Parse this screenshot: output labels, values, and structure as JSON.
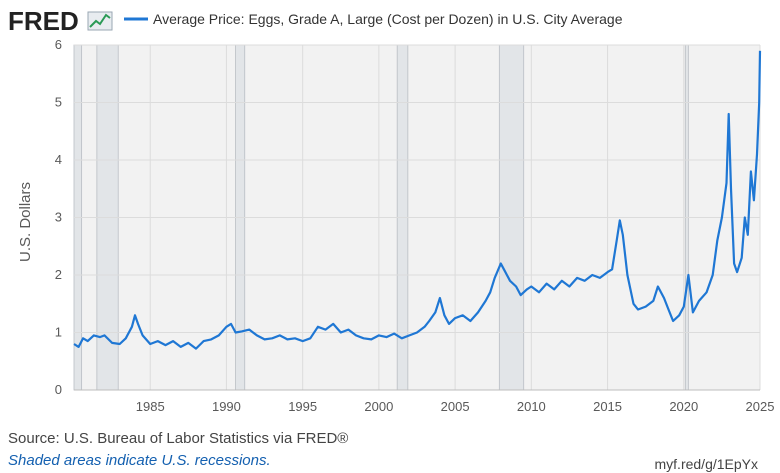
{
  "header": {
    "logo_text": "FRED",
    "series_title": "Average Price: Eggs, Grade A, Large (Cost per Dozen) in U.S. City Average"
  },
  "footer": {
    "source": "Source: U.S. Bureau of Labor Statistics via FRED®",
    "shade_note": "Shaded areas indicate U.S. recessions.",
    "shortlink": "myf.red/g/1EpYx"
  },
  "colors": {
    "line": "#1f77d4",
    "plot_bg": "#f2f2f2",
    "recession": "#e2e5e8",
    "grid": "#ffffff"
  },
  "chart_data": {
    "type": "line",
    "title": "Average Price: Eggs, Grade A, Large (Cost per Dozen) in U.S. City Average",
    "ylabel": "U.S. Dollars",
    "xlabel": "",
    "xlim": [
      1980.0,
      2025.0
    ],
    "ylim": [
      0,
      6
    ],
    "xticks": [
      1985,
      1990,
      1995,
      2000,
      2005,
      2010,
      2015,
      2020,
      2025
    ],
    "yticks": [
      0,
      1,
      2,
      3,
      4,
      5,
      6
    ],
    "grid": true,
    "legend": "top-left",
    "recessions": [
      [
        1980.0,
        1980.5
      ],
      [
        1981.5,
        1982.9
      ],
      [
        1990.6,
        1991.2
      ],
      [
        2001.2,
        2001.9
      ],
      [
        2007.9,
        2009.5
      ],
      [
        2020.1,
        2020.3
      ]
    ],
    "series": [
      {
        "name": "Average Price: Eggs, Grade A, Large (Cost per Dozen) in U.S. City Average",
        "x": [
          1980.0,
          1980.3,
          1980.6,
          1980.9,
          1981.3,
          1981.7,
          1982.0,
          1982.5,
          1983.0,
          1983.4,
          1983.8,
          1984.0,
          1984.2,
          1984.5,
          1985.0,
          1985.5,
          1986.0,
          1986.5,
          1987.0,
          1987.5,
          1988.0,
          1988.5,
          1989.0,
          1989.5,
          1990.0,
          1990.3,
          1990.6,
          1991.0,
          1991.5,
          1992.0,
          1992.5,
          1993.0,
          1993.5,
          1994.0,
          1994.5,
          1995.0,
          1995.5,
          1996.0,
          1996.5,
          1997.0,
          1997.5,
          1998.0,
          1998.5,
          1999.0,
          1999.5,
          2000.0,
          2000.5,
          2001.0,
          2001.5,
          2002.0,
          2002.5,
          2003.0,
          2003.3,
          2003.7,
          2004.0,
          2004.3,
          2004.6,
          2005.0,
          2005.5,
          2006.0,
          2006.5,
          2007.0,
          2007.3,
          2007.6,
          2008.0,
          2008.2,
          2008.6,
          2009.0,
          2009.3,
          2009.7,
          2010.0,
          2010.5,
          2011.0,
          2011.5,
          2012.0,
          2012.5,
          2013.0,
          2013.5,
          2014.0,
          2014.5,
          2015.0,
          2015.3,
          2015.6,
          2015.8,
          2016.0,
          2016.3,
          2016.7,
          2017.0,
          2017.5,
          2018.0,
          2018.3,
          2018.7,
          2019.0,
          2019.3,
          2019.7,
          2020.0,
          2020.3,
          2020.6,
          2021.0,
          2021.5,
          2021.9,
          2022.2,
          2022.5,
          2022.8,
          2022.95,
          2023.1,
          2023.3,
          2023.5,
          2023.8,
          2024.0,
          2024.2,
          2024.4,
          2024.6,
          2024.8,
          2024.95,
          2025.0
        ],
        "values": [
          0.8,
          0.75,
          0.9,
          0.85,
          0.95,
          0.92,
          0.95,
          0.82,
          0.8,
          0.9,
          1.1,
          1.3,
          1.15,
          0.95,
          0.8,
          0.85,
          0.78,
          0.85,
          0.75,
          0.82,
          0.72,
          0.85,
          0.88,
          0.95,
          1.1,
          1.15,
          1.0,
          1.02,
          1.05,
          0.95,
          0.88,
          0.9,
          0.95,
          0.88,
          0.9,
          0.85,
          0.9,
          1.1,
          1.05,
          1.15,
          1.0,
          1.05,
          0.95,
          0.9,
          0.88,
          0.95,
          0.92,
          0.98,
          0.9,
          0.95,
          1.0,
          1.1,
          1.2,
          1.35,
          1.6,
          1.3,
          1.15,
          1.25,
          1.3,
          1.2,
          1.35,
          1.55,
          1.7,
          1.95,
          2.2,
          2.1,
          1.9,
          1.8,
          1.65,
          1.75,
          1.8,
          1.7,
          1.85,
          1.75,
          1.9,
          1.8,
          1.95,
          1.9,
          2.0,
          1.95,
          2.05,
          2.1,
          2.6,
          2.95,
          2.7,
          2.0,
          1.5,
          1.4,
          1.45,
          1.55,
          1.8,
          1.6,
          1.4,
          1.2,
          1.3,
          1.45,
          2.0,
          1.35,
          1.55,
          1.7,
          2.0,
          2.6,
          3.0,
          3.6,
          4.8,
          3.5,
          2.2,
          2.05,
          2.3,
          3.0,
          2.7,
          3.8,
          3.3,
          4.1,
          5.0,
          5.9
        ]
      }
    ]
  }
}
